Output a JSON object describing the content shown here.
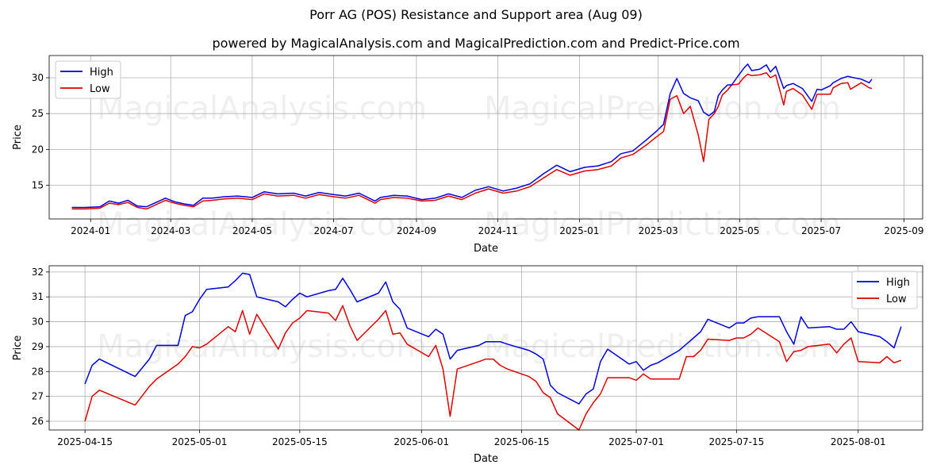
{
  "title": "Porr AG (POS) Resistance and Support area (Aug 09)",
  "subtitle": "powered by MagicalAnalysis.com and MagicalPrediction.com and Predict-Price.com",
  "watermarks": [
    "MagicalAnalysis.com",
    "MagicalPrediction.com"
  ],
  "colors": {
    "high": "#0000dd",
    "low": "#dd0000",
    "grid": "#b0b0b0"
  },
  "chart_data": [
    {
      "type": "line",
      "xlabel": "Date",
      "ylabel": "Price",
      "xlim": [
        "2023-12-01",
        "2025-09-15"
      ],
      "ylim": [
        10.3,
        33.1
      ],
      "x_tick_labels": [
        "2024-01",
        "2024-03",
        "2024-05",
        "2024-07",
        "2024-09",
        "2024-11",
        "2025-01",
        "2025-03",
        "2025-05",
        "2025-07",
        "2025-09"
      ],
      "y_tick_labels": [
        "15",
        "20",
        "25",
        "30"
      ],
      "y_ticks": [
        15,
        20,
        25,
        30
      ],
      "grid": true,
      "legend_position": "top-left",
      "x": [
        "2023-12-18",
        "2023-12-28",
        "2024-01-08",
        "2024-01-15",
        "2024-01-22",
        "2024-01-29",
        "2024-02-05",
        "2024-02-12",
        "2024-02-19",
        "2024-02-26",
        "2024-03-04",
        "2024-03-11",
        "2024-03-18",
        "2024-03-25",
        "2024-04-01",
        "2024-04-10",
        "2024-04-20",
        "2024-05-01",
        "2024-05-10",
        "2024-05-20",
        "2024-06-01",
        "2024-06-10",
        "2024-06-20",
        "2024-07-01",
        "2024-07-10",
        "2024-07-20",
        "2024-08-01",
        "2024-08-05",
        "2024-08-15",
        "2024-08-25",
        "2024-09-05",
        "2024-09-15",
        "2024-09-25",
        "2024-10-05",
        "2024-10-15",
        "2024-10-25",
        "2024-11-05",
        "2024-11-15",
        "2024-11-25",
        "2024-12-05",
        "2024-12-15",
        "2024-12-25",
        "2025-01-05",
        "2025-01-15",
        "2025-01-25",
        "2025-02-01",
        "2025-02-10",
        "2025-02-20",
        "2025-02-28",
        "2025-03-05",
        "2025-03-10",
        "2025-03-15",
        "2025-03-20",
        "2025-03-25",
        "2025-03-31",
        "2025-04-04",
        "2025-04-08",
        "2025-04-12",
        "2025-04-15",
        "2025-04-18",
        "2025-04-22",
        "2025-04-25",
        "2025-04-30",
        "2025-05-04",
        "2025-05-07",
        "2025-05-10",
        "2025-05-16",
        "2025-05-21",
        "2025-05-24",
        "2025-05-28",
        "2025-06-03",
        "2025-06-05",
        "2025-06-10",
        "2025-06-17",
        "2025-06-24",
        "2025-06-28",
        "2025-07-01",
        "2025-07-08",
        "2025-07-10",
        "2025-07-16",
        "2025-07-21",
        "2025-07-23",
        "2025-07-31",
        "2025-08-06",
        "2025-08-08"
      ],
      "series": [
        {
          "name": "High",
          "values": [
            11.9,
            11.9,
            12.0,
            12.8,
            12.5,
            12.9,
            12.1,
            12.0,
            12.6,
            13.2,
            12.7,
            12.4,
            12.2,
            13.2,
            13.2,
            13.4,
            13.5,
            13.3,
            14.1,
            13.8,
            13.9,
            13.5,
            14.0,
            13.7,
            13.5,
            13.9,
            12.8,
            13.3,
            13.6,
            13.5,
            13.0,
            13.2,
            13.8,
            13.3,
            14.3,
            14.8,
            14.2,
            14.6,
            15.2,
            16.6,
            17.8,
            16.9,
            17.5,
            17.7,
            18.3,
            19.4,
            19.8,
            21.3,
            22.6,
            23.5,
            27.8,
            29.9,
            27.8,
            27.2,
            26.8,
            25.2,
            24.7,
            25.3,
            27.5,
            28.3,
            29.0,
            29.0,
            30.3,
            31.3,
            31.9,
            31.0,
            31.2,
            31.8,
            30.8,
            31.6,
            28.5,
            28.9,
            29.2,
            28.5,
            26.7,
            28.4,
            28.3,
            28.9,
            29.3,
            29.9,
            30.2,
            30.1,
            29.8,
            29.3,
            29.8
          ]
        },
        {
          "name": "Low",
          "values": [
            11.7,
            11.7,
            11.8,
            12.5,
            12.3,
            12.6,
            11.9,
            11.7,
            12.3,
            12.9,
            12.5,
            12.2,
            12.0,
            12.8,
            12.9,
            13.1,
            13.2,
            13.0,
            13.8,
            13.5,
            13.6,
            13.2,
            13.7,
            13.4,
            13.2,
            13.6,
            12.5,
            13.0,
            13.3,
            13.2,
            12.8,
            12.9,
            13.5,
            13.0,
            13.9,
            14.5,
            13.9,
            14.2,
            14.8,
            16.0,
            17.2,
            16.4,
            17.0,
            17.2,
            17.7,
            18.8,
            19.3,
            20.6,
            21.8,
            22.5,
            27.0,
            27.5,
            25.0,
            26.0,
            22.0,
            18.3,
            24.2,
            25.0,
            26.0,
            27.6,
            28.3,
            29.0,
            29.1,
            30.0,
            30.5,
            30.3,
            30.4,
            30.7,
            30.0,
            30.4,
            26.2,
            28.1,
            28.5,
            27.6,
            25.6,
            27.7,
            27.7,
            27.7,
            28.6,
            29.2,
            29.3,
            28.4,
            29.3,
            28.6,
            28.5
          ]
        }
      ]
    },
    {
      "type": "line",
      "xlabel": "Date",
      "ylabel": "Price",
      "xlim": [
        "2025-04-10",
        "2025-08-10"
      ],
      "ylim": [
        25.65,
        32.25
      ],
      "x_tick_labels": [
        "2025-04-15",
        "2025-05-01",
        "2025-05-15",
        "2025-06-01",
        "2025-06-15",
        "2025-07-01",
        "2025-07-15",
        "2025-08-01"
      ],
      "y_tick_labels": [
        "26",
        "27",
        "28",
        "29",
        "30",
        "31",
        "32"
      ],
      "y_ticks": [
        26,
        27,
        28,
        29,
        30,
        31,
        32
      ],
      "grid": true,
      "legend_position": "top-right",
      "x": [
        "2025-04-15",
        "2025-04-16",
        "2025-04-17",
        "2025-04-22",
        "2025-04-24",
        "2025-04-25",
        "2025-04-28",
        "2025-04-29",
        "2025-04-30",
        "2025-05-01",
        "2025-05-02",
        "2025-05-05",
        "2025-05-06",
        "2025-05-07",
        "2025-05-08",
        "2025-05-09",
        "2025-05-12",
        "2025-05-13",
        "2025-05-14",
        "2025-05-15",
        "2025-05-16",
        "2025-05-19",
        "2025-05-20",
        "2025-05-21",
        "2025-05-22",
        "2025-05-23",
        "2025-05-26",
        "2025-05-27",
        "2025-05-28",
        "2025-05-29",
        "2025-05-30",
        "2025-06-02",
        "2025-06-03",
        "2025-06-04",
        "2025-06-05",
        "2025-06-06",
        "2025-06-09",
        "2025-06-10",
        "2025-06-11",
        "2025-06-12",
        "2025-06-13",
        "2025-06-16",
        "2025-06-17",
        "2025-06-18",
        "2025-06-19",
        "2025-06-20",
        "2025-06-23",
        "2025-06-24",
        "2025-06-25",
        "2025-06-26",
        "2025-06-27",
        "2025-06-30",
        "2025-07-01",
        "2025-07-02",
        "2025-07-03",
        "2025-07-04",
        "2025-07-07",
        "2025-07-08",
        "2025-07-09",
        "2025-07-10",
        "2025-07-11",
        "2025-07-14",
        "2025-07-15",
        "2025-07-16",
        "2025-07-17",
        "2025-07-18",
        "2025-07-21",
        "2025-07-22",
        "2025-07-23",
        "2025-07-24",
        "2025-07-25",
        "2025-07-28",
        "2025-07-29",
        "2025-07-30",
        "2025-07-31",
        "2025-08-01",
        "2025-08-04",
        "2025-08-05",
        "2025-08-06",
        "2025-08-07"
      ],
      "series": [
        {
          "name": "High",
          "values": [
            27.5,
            28.25,
            28.5,
            27.8,
            28.5,
            29.05,
            29.05,
            30.25,
            30.4,
            30.9,
            31.3,
            31.4,
            31.65,
            31.95,
            31.9,
            31.0,
            30.8,
            30.6,
            30.9,
            31.15,
            31.0,
            31.25,
            31.3,
            31.75,
            31.3,
            30.8,
            31.15,
            31.6,
            30.8,
            30.5,
            29.75,
            29.4,
            29.7,
            29.5,
            28.5,
            28.85,
            29.05,
            29.2,
            29.2,
            29.2,
            29.1,
            28.85,
            28.7,
            28.5,
            27.45,
            27.15,
            26.7,
            27.1,
            27.3,
            28.4,
            28.9,
            28.3,
            28.4,
            28.05,
            28.25,
            28.35,
            28.85,
            29.1,
            29.35,
            29.6,
            30.1,
            29.75,
            29.95,
            29.95,
            30.15,
            30.2,
            30.2,
            29.6,
            29.1,
            30.2,
            29.75,
            29.8,
            29.7,
            29.7,
            30.0,
            29.6,
            29.4,
            29.2,
            28.95,
            29.8
          ]
        },
        {
          "name": "Low",
          "values": [
            26.0,
            27.0,
            27.25,
            26.65,
            27.4,
            27.7,
            28.3,
            28.6,
            29.0,
            28.95,
            29.1,
            29.8,
            29.6,
            30.45,
            29.5,
            30.3,
            28.9,
            29.55,
            29.95,
            30.15,
            30.45,
            30.35,
            30.05,
            30.65,
            29.85,
            29.25,
            30.1,
            30.45,
            29.5,
            29.55,
            29.1,
            28.6,
            29.05,
            28.1,
            26.2,
            28.1,
            28.4,
            28.5,
            28.5,
            28.25,
            28.1,
            27.8,
            27.6,
            27.15,
            26.95,
            26.3,
            25.65,
            26.3,
            26.75,
            27.1,
            27.75,
            27.75,
            27.65,
            27.9,
            27.7,
            27.7,
            27.7,
            28.6,
            28.6,
            28.85,
            29.3,
            29.25,
            29.35,
            29.35,
            29.5,
            29.75,
            29.2,
            28.4,
            28.8,
            28.85,
            29.0,
            29.1,
            28.75,
            29.1,
            29.35,
            28.4,
            28.35,
            28.6,
            28.35,
            28.45
          ]
        }
      ]
    }
  ]
}
